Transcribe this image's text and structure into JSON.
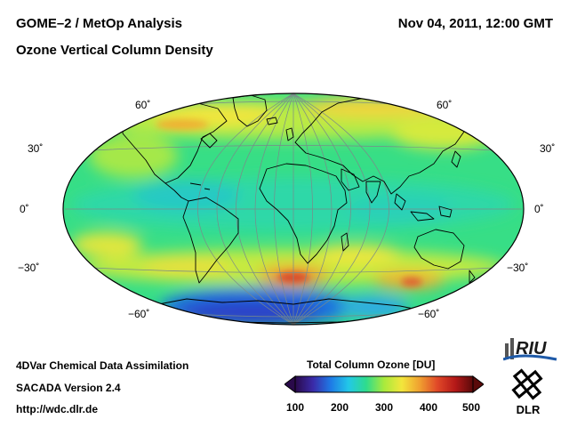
{
  "header": {
    "title_line1": "GOME–2 / MetOp Analysis",
    "title_line2": "Ozone Vertical Column Density",
    "datetime": "Nov 04, 2011, 12:00 GMT"
  },
  "map": {
    "projection": "Hammer-Aitoff",
    "lat_labels": [
      "60˚",
      "30˚",
      "0˚",
      "−30˚",
      "−60˚"
    ],
    "lat_values": [
      60,
      30,
      0,
      -30,
      -60
    ],
    "field_colors": {
      "high": "#d94a2a",
      "elevated": "#f3e63c",
      "normal": "#2fdc8c",
      "low": "#1e6fe0",
      "very_low": "#2a3fc8"
    }
  },
  "colorbar": {
    "title": "Total Column Ozone [DU]",
    "tick_labels": [
      "100",
      "200",
      "300",
      "400",
      "500"
    ],
    "range": [
      100,
      500
    ],
    "colors": [
      "#2a0a4a",
      "#3a2aa8",
      "#1e7ae6",
      "#22c8e8",
      "#2fdc8c",
      "#a9ea3c",
      "#f3e63c",
      "#f0a030",
      "#e04828",
      "#b41818",
      "#5a0a0a"
    ]
  },
  "footer": {
    "line1": "4DVar Chemical Data Assimilation",
    "line2": "SACADA Version 2.4",
    "line3": "http://wdc.dlr.de"
  },
  "logos": {
    "riu": "RIU",
    "dlr": "DLR"
  }
}
